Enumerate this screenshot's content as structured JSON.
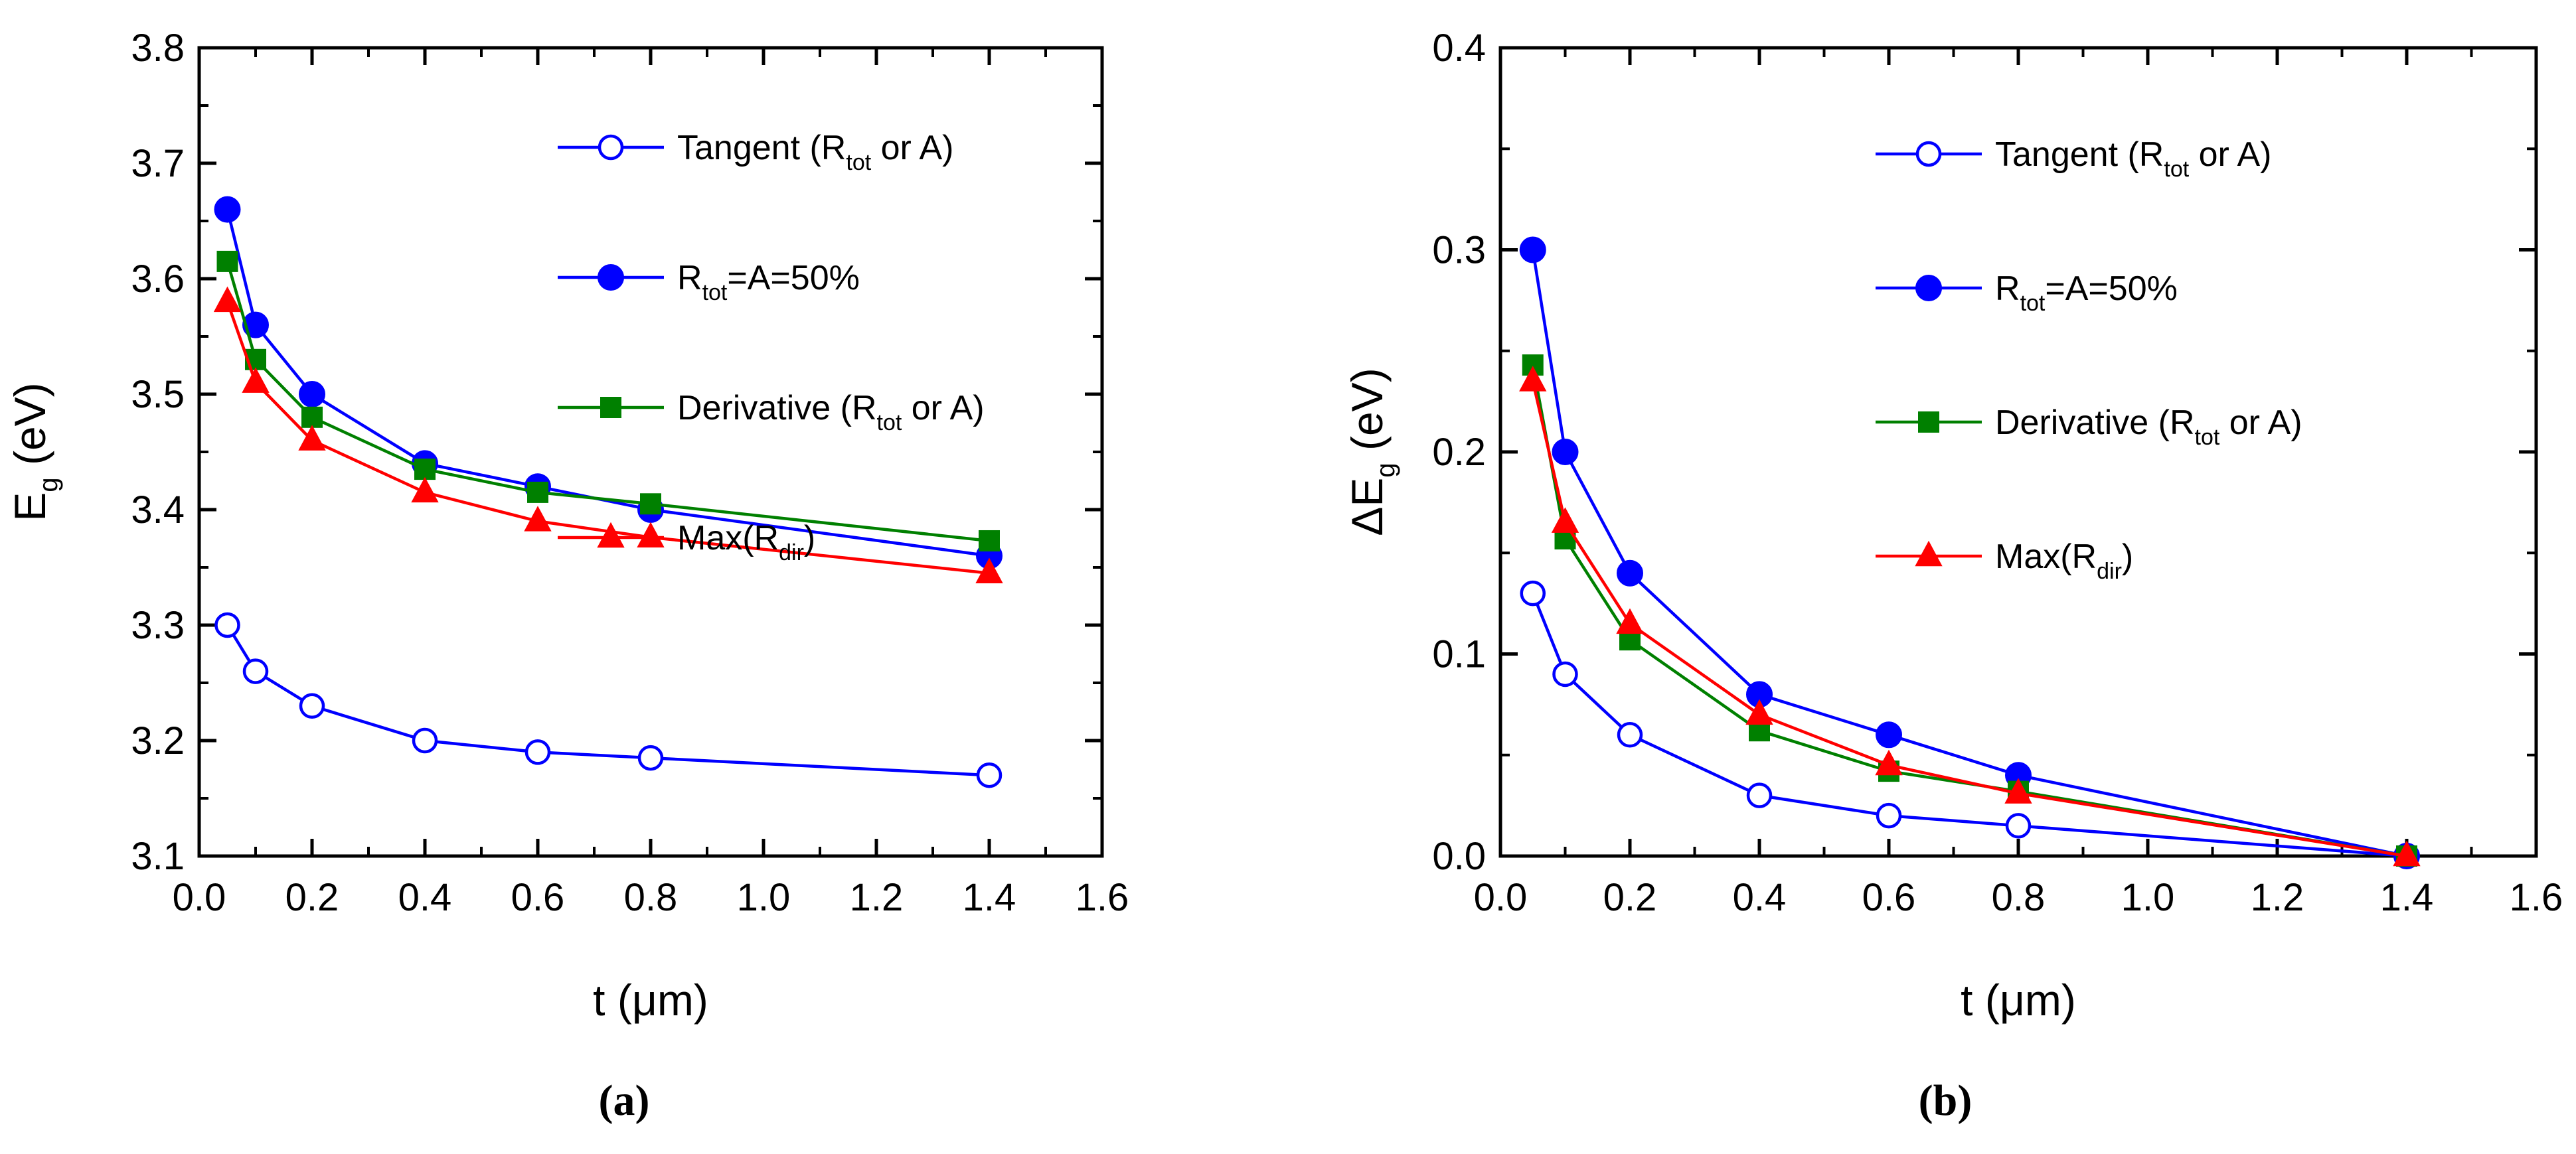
{
  "chart_data": [
    {
      "id": "a",
      "type": "line",
      "panel_label": "(a)",
      "title": "",
      "xlabel": "t (μm)",
      "ylabel": "E_g (eV)",
      "ylabel_main": "E",
      "ylabel_sub": "g",
      "ylabel_unit": " (eV)",
      "xlim": [
        0.0,
        1.6
      ],
      "ylim": [
        3.1,
        3.8
      ],
      "xticks": [
        "0.0",
        "0.2",
        "0.4",
        "0.6",
        "0.8",
        "1.0",
        "1.2",
        "1.4",
        "1.6"
      ],
      "yticks": [
        "3.1",
        "3.2",
        "3.3",
        "3.4",
        "3.5",
        "3.6",
        "3.7",
        "3.8"
      ],
      "legend_position": "top-right",
      "series": [
        {
          "name": "Tangent (R_tot or A)",
          "label_pre": "Tangent (R",
          "label_sub": "tot",
          "label_post": " or A)",
          "color": "#0000FF",
          "marker": "circle-open",
          "x": [
            0.05,
            0.1,
            0.2,
            0.4,
            0.6,
            0.8,
            1.4
          ],
          "y": [
            3.3,
            3.26,
            3.23,
            3.2,
            3.19,
            3.185,
            3.17
          ]
        },
        {
          "name": "R_tot=A=50%",
          "label_pre": "R",
          "label_sub": "tot",
          "label_post": "=A=50%",
          "color": "#0000FF",
          "marker": "circle-filled",
          "x": [
            0.05,
            0.1,
            0.2,
            0.4,
            0.6,
            0.8,
            1.4
          ],
          "y": [
            3.66,
            3.56,
            3.5,
            3.44,
            3.42,
            3.4,
            3.36
          ]
        },
        {
          "name": "Derivative (R_tot or A)",
          "label_pre": "Derivative (R",
          "label_sub": "tot",
          "label_post": " or A)",
          "color": "#008000",
          "marker": "square",
          "x": [
            0.05,
            0.1,
            0.2,
            0.4,
            0.6,
            0.8,
            1.4
          ],
          "y": [
            3.615,
            3.53,
            3.48,
            3.435,
            3.415,
            3.405,
            3.373
          ]
        },
        {
          "name": "Max(R_dir)",
          "label_pre": "Max(R",
          "label_sub": "dir",
          "label_post": ")",
          "color": "#FF0000",
          "marker": "triangle",
          "x": [
            0.05,
            0.1,
            0.2,
            0.4,
            0.6,
            0.8,
            1.4
          ],
          "y": [
            3.58,
            3.51,
            3.46,
            3.415,
            3.39,
            3.376,
            3.345
          ]
        }
      ]
    },
    {
      "id": "b",
      "type": "line",
      "panel_label": "(b)",
      "title": "",
      "xlabel": "t (μm)",
      "ylabel": "ΔE_g (eV)",
      "ylabel_main": "ΔE",
      "ylabel_sub": "g",
      "ylabel_unit": " (eV)",
      "xlim": [
        0.0,
        1.6
      ],
      "ylim": [
        0.0,
        0.4
      ],
      "xticks": [
        "0.0",
        "0.2",
        "0.4",
        "0.6",
        "0.8",
        "1.0",
        "1.2",
        "1.4",
        "1.6"
      ],
      "yticks": [
        "0.0",
        "0.1",
        "0.2",
        "0.3",
        "0.4"
      ],
      "legend_position": "top-right",
      "series": [
        {
          "name": "Tangent (R_tot or A)",
          "label_pre": "Tangent (R",
          "label_sub": "tot",
          "label_post": " or A)",
          "color": "#0000FF",
          "marker": "circle-open",
          "x": [
            0.05,
            0.1,
            0.2,
            0.4,
            0.6,
            0.8,
            1.4
          ],
          "y": [
            0.13,
            0.09,
            0.06,
            0.03,
            0.02,
            0.015,
            0.0
          ]
        },
        {
          "name": "R_tot=A=50%",
          "label_pre": "R",
          "label_sub": "tot",
          "label_post": "=A=50%",
          "color": "#0000FF",
          "marker": "circle-filled",
          "x": [
            0.05,
            0.1,
            0.2,
            0.4,
            0.6,
            0.8,
            1.4
          ],
          "y": [
            0.3,
            0.2,
            0.14,
            0.08,
            0.06,
            0.04,
            0.0
          ]
        },
        {
          "name": "Derivative (R_tot or A)",
          "label_pre": "Derivative (R",
          "label_sub": "tot",
          "label_post": " or A)",
          "color": "#008000",
          "marker": "square",
          "x": [
            0.05,
            0.1,
            0.2,
            0.4,
            0.6,
            0.8,
            1.4
          ],
          "y": [
            0.243,
            0.157,
            0.107,
            0.062,
            0.042,
            0.032,
            0.0
          ]
        },
        {
          "name": "Max(R_dir)",
          "label_pre": "Max(R",
          "label_sub": "dir",
          "label_post": ")",
          "color": "#FF0000",
          "marker": "triangle",
          "x": [
            0.05,
            0.1,
            0.2,
            0.4,
            0.6,
            0.8,
            1.4
          ],
          "y": [
            0.235,
            0.165,
            0.115,
            0.07,
            0.045,
            0.031,
            0.0
          ]
        }
      ]
    }
  ]
}
